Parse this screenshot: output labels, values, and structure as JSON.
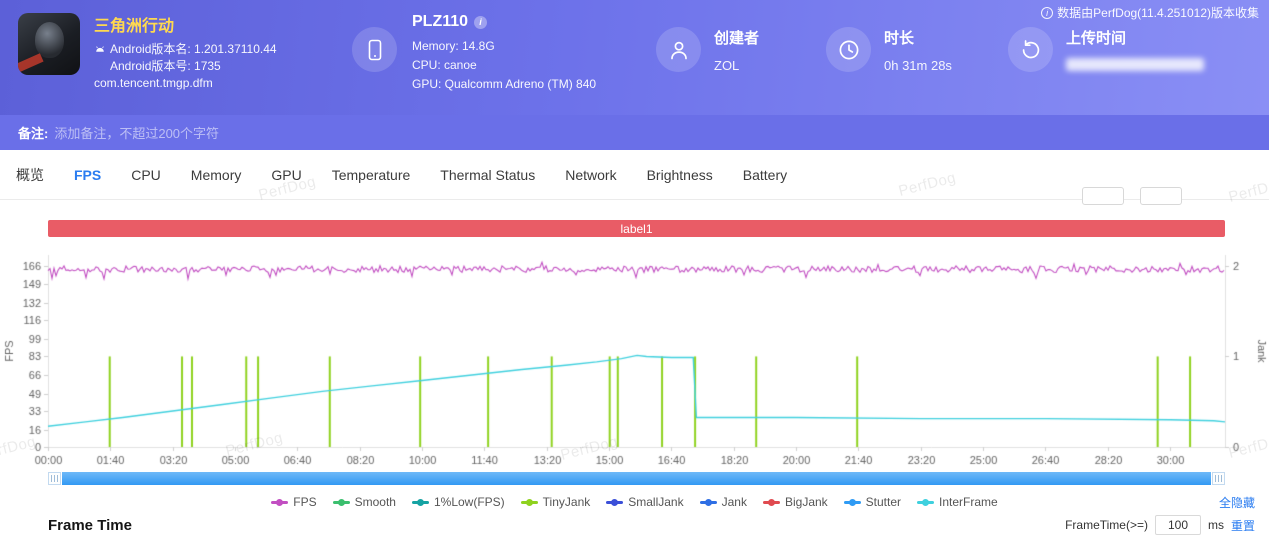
{
  "meta": {
    "collect_info": "数据由PerfDog(11.4.251012)版本收集"
  },
  "colors": {
    "accent": "#2a7cf0",
    "banner": "#e95c66",
    "link": "#2a7cf0"
  },
  "watermark": "PerfDog",
  "header": {
    "app": {
      "title": "三角洲行动",
      "version_name": "Android版本名: 1.201.37110.44",
      "version_code": "Android版本号: 1735",
      "package": "com.tencent.tmgp.dfm"
    },
    "device": {
      "model": "PLZ110",
      "memory": "Memory: 14.8G",
      "cpu": "CPU: canoe",
      "gpu": "GPU: Qualcomm Adreno (TM) 840"
    },
    "creator": {
      "label": "创建者",
      "value": "ZOL"
    },
    "duration": {
      "label": "时长",
      "value": "0h 31m 28s"
    },
    "upload": {
      "label": "上传时间",
      "value": ""
    }
  },
  "remark": {
    "label": "备注:",
    "placeholder": "添加备注，不超过200个字符"
  },
  "tabs": [
    {
      "label": "概览",
      "active": false
    },
    {
      "label": "FPS",
      "active": true
    },
    {
      "label": "CPU",
      "active": false
    },
    {
      "label": "Memory",
      "active": false
    },
    {
      "label": "GPU",
      "active": false
    },
    {
      "label": "Temperature",
      "active": false
    },
    {
      "label": "Thermal Status",
      "active": false
    },
    {
      "label": "Network",
      "active": false
    },
    {
      "label": "Brightness",
      "active": false
    },
    {
      "label": "Battery",
      "active": false
    }
  ],
  "chart_data": {
    "type": "line",
    "title": "label1",
    "x_axis": {
      "duration_s": 1888,
      "tick_interval_s": 100,
      "tick_labels": [
        "00:00",
        "01:40",
        "03:20",
        "05:00",
        "06:40",
        "08:20",
        "10:00",
        "11:40",
        "13:20",
        "15:00",
        "16:40",
        "18:20",
        "20:00",
        "21:40",
        "23:20",
        "25:00",
        "26:40",
        "28:20",
        "30:00"
      ]
    },
    "y_axis_left": {
      "label": "FPS",
      "max": 176,
      "ticks": [
        0,
        16,
        33,
        49,
        66,
        83,
        99,
        116,
        132,
        149,
        166
      ]
    },
    "y_axis_right": {
      "label": "Jank",
      "max": 2.12,
      "ticks": [
        0,
        1,
        2
      ]
    },
    "series": [
      {
        "name": "TinyJank",
        "style": "event-bars",
        "axis": "right",
        "color": "#8fd21f",
        "value": 1,
        "events_s": [
          99,
          215,
          231,
          318,
          337,
          452,
          597,
          706,
          808,
          901,
          914,
          985,
          1038,
          1136,
          1298,
          1780,
          1832
        ]
      },
      {
        "name": "InterFrame",
        "style": "line",
        "color": "#3fd0de",
        "points": [
          [
            0,
            19
          ],
          [
            60,
            23
          ],
          [
            120,
            27
          ],
          [
            200,
            33
          ],
          [
            280,
            39
          ],
          [
            360,
            45
          ],
          [
            440,
            51
          ],
          [
            520,
            56
          ],
          [
            600,
            61
          ],
          [
            680,
            66
          ],
          [
            760,
            71
          ],
          [
            830,
            75
          ],
          [
            880,
            78
          ],
          [
            920,
            81
          ],
          [
            945,
            84
          ],
          [
            960,
            83
          ],
          [
            1000,
            82
          ],
          [
            1035,
            82
          ],
          [
            1040,
            27
          ],
          [
            1200,
            27
          ],
          [
            1400,
            26
          ],
          [
            1600,
            26
          ],
          [
            1800,
            25
          ],
          [
            1870,
            24
          ],
          [
            1888,
            23
          ]
        ]
      },
      {
        "name": "FPS",
        "style": "noisy-line",
        "color": "#c24fc2",
        "base": 163,
        "noise": 3,
        "seed": 12
      }
    ],
    "legend": [
      {
        "name": "FPS",
        "color": "#c24fc2"
      },
      {
        "name": "Smooth",
        "color": "#3bbf6e"
      },
      {
        "name": "1%Low(FPS)",
        "color": "#16a3a3"
      },
      {
        "name": "TinyJank",
        "color": "#8fd21f"
      },
      {
        "name": "SmallJank",
        "color": "#3b4fd8"
      },
      {
        "name": "Jank",
        "color": "#2f6fe4"
      },
      {
        "name": "BigJank",
        "color": "#e04b50"
      },
      {
        "name": "Stutter",
        "color": "#2f9bf4"
      },
      {
        "name": "InterFrame",
        "color": "#3fd0de"
      }
    ]
  },
  "footer": {
    "hide_all": "全隐藏",
    "frame_time_label": "FrameTime(>=)",
    "frame_time_value": "100",
    "unit": "ms",
    "reset": "重置",
    "section_title": "Frame Time"
  }
}
